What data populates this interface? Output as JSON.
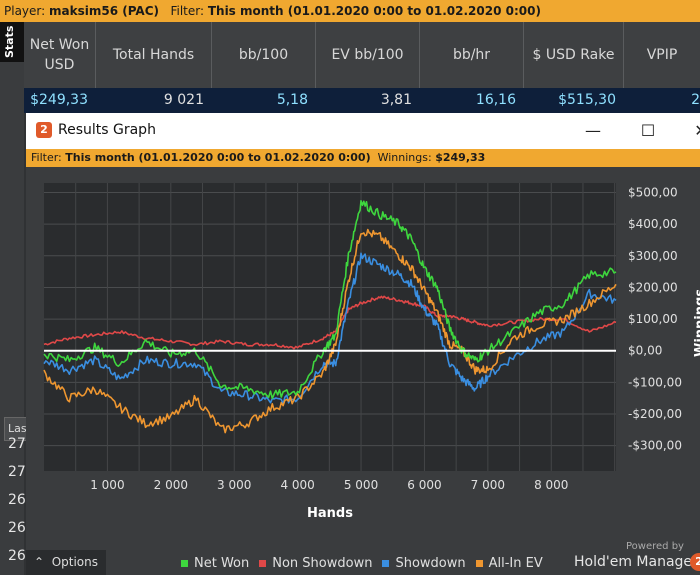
{
  "player_bar": {
    "player_label": "Player:",
    "player_name": "maksim56 (PAC)",
    "filter_label": "Filter:",
    "filter_value": "This month (01.01.2020 0:00 to 01.02.2020 0:00)"
  },
  "stats_tab": "Stats",
  "left_panel": {
    "last_label": "Las",
    "row_numbers": [
      "27",
      "27",
      "26",
      "26",
      "26"
    ]
  },
  "stats": {
    "columns": [
      {
        "label": "Net Won USD",
        "value": "$249,33"
      },
      {
        "label": "Total Hands",
        "value": "9 021"
      },
      {
        "label": "bb/100",
        "value": "5,18"
      },
      {
        "label": "EV bb/100",
        "value": "3,81"
      },
      {
        "label": "bb/hr",
        "value": "16,16"
      },
      {
        "label": "$ USD Rake",
        "value": "$515,30"
      },
      {
        "label": "VPIP",
        "value": "2"
      }
    ]
  },
  "window": {
    "logo": "2",
    "title": "Results Graph",
    "minimize": "—",
    "maximize": "☐",
    "close": "✕",
    "filter_label": "Filter:",
    "filter_value": "This month (01.01.2020 0:00 to 01.02.2020 0:00)",
    "winnings_label": "Winnings:",
    "winnings_value": "$249,33"
  },
  "footer": {
    "options_label": "Options",
    "options_icon": "chevron-up-icon",
    "powered_by": "Powered by",
    "brand": "Hold'em Manager",
    "brand_mark": "2"
  },
  "chart_data": {
    "type": "line",
    "xlabel": "Hands",
    "ylabel": "Winnings",
    "xlim": [
      0,
      9021
    ],
    "ylim": [
      -380,
      530
    ],
    "x_ticks": [
      1000,
      2000,
      3000,
      4000,
      5000,
      6000,
      7000,
      8000
    ],
    "x_tick_labels": [
      "1 000",
      "2 000",
      "3 000",
      "4 000",
      "5 000",
      "6 000",
      "7 000",
      "8 000"
    ],
    "y_ticks": [
      500,
      400,
      300,
      200,
      100,
      0,
      -100,
      -200,
      -300
    ],
    "y_tick_labels": [
      "$500,00",
      "$400,00",
      "$300,00",
      "$200,00",
      "$100,00",
      "$0,00",
      "-$100,00",
      "-$200,00",
      "-$300,00"
    ],
    "grid": true,
    "legend_position": "bottom",
    "colors": {
      "net_won": "#3ed63e",
      "non_showdown": "#e04848",
      "showdown": "#3a8ee0",
      "all_in_ev": "#ee9630",
      "zero_line": "#ffffff"
    },
    "x": [
      0,
      400,
      800,
      1200,
      1600,
      2000,
      2400,
      2800,
      3200,
      3600,
      4000,
      4400,
      4600,
      4800,
      5000,
      5300,
      5600,
      5800,
      6000,
      6200,
      6400,
      6600,
      6800,
      7000,
      7400,
      7800,
      8200,
      8600,
      9021
    ],
    "series": [
      {
        "name": "Net Won",
        "values": [
          -10,
          -30,
          10,
          -40,
          30,
          -10,
          0,
          -110,
          -120,
          -140,
          -130,
          0,
          50,
          300,
          470,
          430,
          400,
          350,
          260,
          200,
          70,
          0,
          -30,
          0,
          60,
          120,
          150,
          240,
          249
        ]
      },
      {
        "name": "Non Showdown",
        "values": [
          20,
          40,
          50,
          60,
          40,
          30,
          20,
          30,
          20,
          20,
          10,
          40,
          60,
          130,
          150,
          170,
          160,
          150,
          140,
          110,
          110,
          100,
          90,
          80,
          90,
          100,
          100,
          60,
          90
        ]
      },
      {
        "name": "Showdown",
        "values": [
          -30,
          -60,
          -30,
          -90,
          -30,
          -40,
          -40,
          -130,
          -140,
          -160,
          -150,
          -40,
          -40,
          150,
          300,
          270,
          240,
          210,
          130,
          80,
          -40,
          -90,
          -120,
          -80,
          -20,
          30,
          60,
          180,
          159
        ]
      },
      {
        "name": "All-In EV",
        "values": [
          -70,
          -150,
          -120,
          -180,
          -230,
          -210,
          -150,
          -250,
          -230,
          -180,
          -150,
          -70,
          20,
          220,
          380,
          360,
          300,
          260,
          190,
          120,
          20,
          0,
          -60,
          -60,
          40,
          80,
          100,
          150,
          210
        ]
      }
    ]
  }
}
